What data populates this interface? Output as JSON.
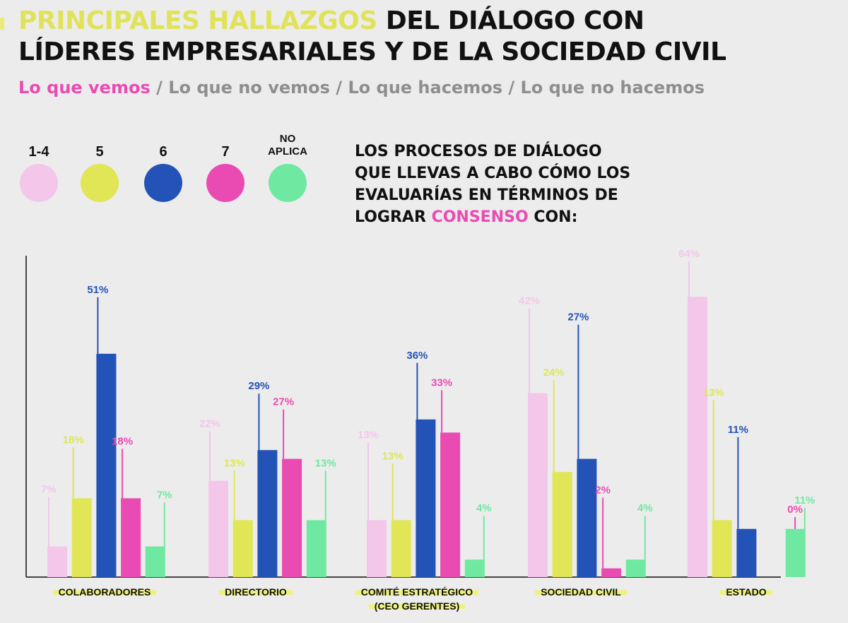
{
  "header": {
    "title_highlight": "PRINCIPALES HALLAZGOS",
    "title_rest_line1": " DEL DIÁLOGO CON",
    "title_line2": "LÍDERES EMPRESARIALES Y DE LA SOCIEDAD CIVIL",
    "subtitle": {
      "active": "Lo que vemos",
      "rest": " / Lo que no vemos / Lo que hacemos / Lo que no hacemos"
    }
  },
  "question": {
    "line1": "LOS PROCESOS DE DIÁLOGO",
    "line2": "QUE LLEVAS A CABO CÓMO LOS",
    "line3": "EVALUARÍAS EN TÉRMINOS DE",
    "line4_pre": "LOGRAR ",
    "line4_highlight": "CONSENSO",
    "line4_post": " CON:"
  },
  "colors": {
    "1-4": "#f4c6ea",
    "5": "#e0e656",
    "6": "#2353b6",
    "7": "#ea4bb2",
    "no_aplica": "#6fe9a1",
    "axis": "#444444",
    "label_highlight": "#eef279"
  },
  "chart_data": {
    "type": "bar",
    "title": "LOS PROCESOS DE DIÁLOGO QUE LLEVAS A CABO CÓMO LOS EVALUARÍAS EN TÉRMINOS DE LOGRAR CONSENSO CON:",
    "xlabel": "",
    "ylabel": "",
    "ylim": [
      0,
      70
    ],
    "grid": false,
    "legend_position": "top-left",
    "categories": [
      "COLABORADORES",
      "DIRECTORIO",
      "COMITÉ ESTRATÉGICO (CEO GERENTES)",
      "SOCIEDAD CIVIL",
      "ESTADO"
    ],
    "category_lines": [
      [
        "COLABORADORES"
      ],
      [
        "DIRECTORIO"
      ],
      [
        "COMITÉ ESTRATÉGICO",
        "(CEO GERENTES)"
      ],
      [
        "SOCIEDAD CIVIL"
      ],
      [
        "ESTADO"
      ]
    ],
    "series": [
      {
        "name": "1-4",
        "color": "#f4c6ea",
        "values": [
          7,
          22,
          13,
          42,
          64
        ]
      },
      {
        "name": "5",
        "color": "#e0e656",
        "values": [
          18,
          13,
          13,
          24,
          13
        ]
      },
      {
        "name": "6",
        "color": "#2353b6",
        "values": [
          51,
          29,
          36,
          27,
          11
        ]
      },
      {
        "name": "7",
        "color": "#ea4bb2",
        "values": [
          18,
          27,
          33,
          2,
          0
        ]
      },
      {
        "name": "NO APLICA",
        "color": "#6fe9a1",
        "values": [
          7,
          13,
          4,
          4,
          11
        ]
      }
    ],
    "value_suffix": "%"
  },
  "legend": [
    {
      "label": "1-4",
      "color": "#f4c6ea"
    },
    {
      "label": "5",
      "color": "#e0e656"
    },
    {
      "label": "6",
      "color": "#2353b6"
    },
    {
      "label": "7",
      "color": "#ea4bb2"
    },
    {
      "label_line1": "NO",
      "label_line2": "APLICA",
      "color": "#6fe9a1"
    }
  ]
}
